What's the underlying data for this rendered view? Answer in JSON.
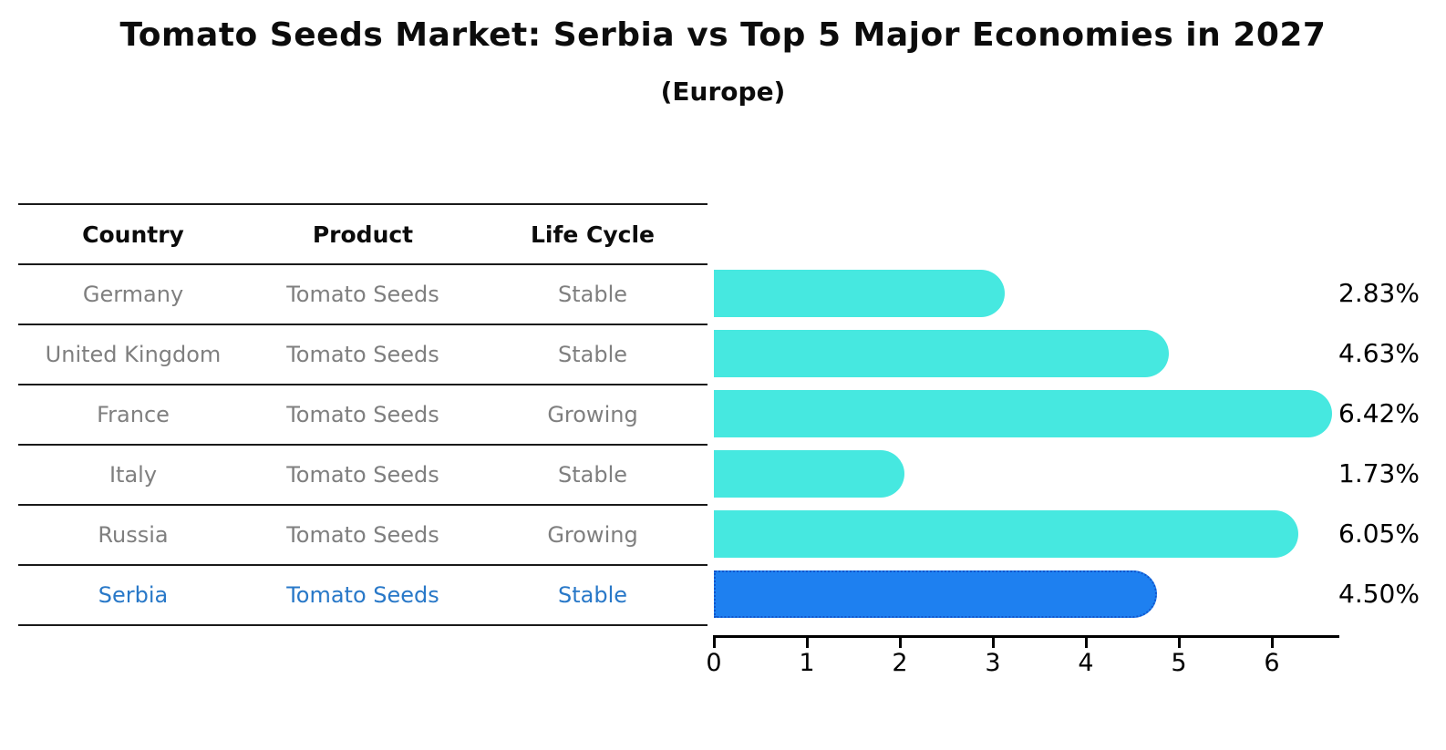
{
  "header": {
    "title": "Tomato Seeds Market: Serbia vs Top 5 Major Economies in 2027",
    "subtitle": "(Europe)"
  },
  "table": {
    "columns": [
      "Country",
      "Product",
      "Life Cycle"
    ],
    "rows": [
      {
        "country": "Germany",
        "product": "Tomato Seeds",
        "life_cycle": "Stable",
        "highlight": false
      },
      {
        "country": "United Kingdom",
        "product": "Tomato Seeds",
        "life_cycle": "Stable",
        "highlight": false
      },
      {
        "country": "France",
        "product": "Tomato Seeds",
        "life_cycle": "Growing",
        "highlight": false
      },
      {
        "country": "Italy",
        "product": "Tomato Seeds",
        "life_cycle": "Stable",
        "highlight": false
      },
      {
        "country": "Russia",
        "product": "Tomato Seeds",
        "life_cycle": "Growing",
        "highlight": false
      },
      {
        "country": "Serbia",
        "product": "Tomato Seeds",
        "life_cycle": "Stable",
        "highlight": true
      }
    ]
  },
  "chart_data": {
    "type": "bar",
    "orientation": "horizontal",
    "title": "Tomato Seeds Market: Serbia vs Top 5 Major Economies in 2027 (Europe)",
    "categories": [
      "Germany",
      "United Kingdom",
      "France",
      "Italy",
      "Russia",
      "Serbia"
    ],
    "values": [
      2.83,
      4.63,
      6.42,
      1.73,
      6.05,
      4.5
    ],
    "value_labels": [
      "2.83%",
      "4.63%",
      "6.42%",
      "1.73%",
      "6.05%",
      "4.50%"
    ],
    "x_ticks": [
      0,
      1,
      2,
      3,
      4,
      5,
      6
    ],
    "xlim": [
      0,
      6.85
    ],
    "xlabel": "",
    "ylabel": "",
    "grid": false,
    "legend": "none",
    "highlight_index": 5,
    "colors": {
      "bar": "#46e8e0",
      "highlight_bar": "#1e80f0",
      "highlight_border": "#1155cc",
      "highlight_text": "#2878c8",
      "row_text": "#7f7f7f",
      "value_label": "#000000"
    }
  }
}
